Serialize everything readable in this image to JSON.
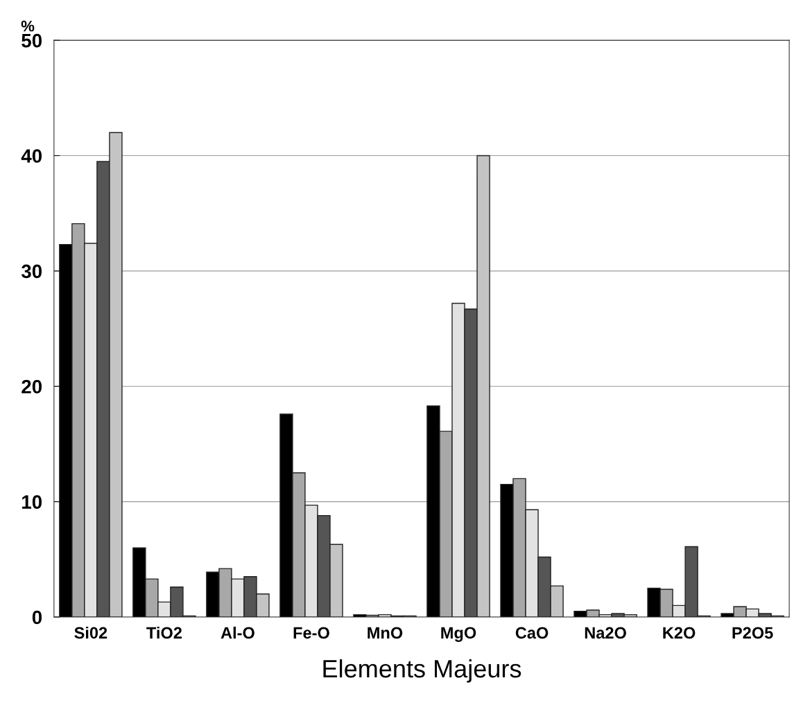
{
  "chart_data": {
    "type": "bar",
    "xlabel": "Elements Majeurs",
    "ylabel": "%",
    "categories": [
      "Si02",
      "TiO2",
      "Al-O",
      "Fe-O",
      "MnO",
      "MgO",
      "CaO",
      "Na2O",
      "K2O",
      "P2O5"
    ],
    "series": [
      {
        "color": "#000000",
        "values": [
          32.3,
          6.0,
          3.9,
          17.6,
          0.2,
          18.3,
          11.5,
          0.5,
          2.5,
          0.3
        ]
      },
      {
        "color": "#a8a8a8",
        "values": [
          34.1,
          3.3,
          4.2,
          12.5,
          0.15,
          16.1,
          12.0,
          0.6,
          2.4,
          0.9
        ]
      },
      {
        "color": "#e2e2e2",
        "values": [
          32.4,
          1.3,
          3.3,
          9.7,
          0.2,
          27.2,
          9.3,
          0.2,
          1.0,
          0.7
        ]
      },
      {
        "color": "#555555",
        "values": [
          39.5,
          2.6,
          3.5,
          8.8,
          0.1,
          26.7,
          5.2,
          0.3,
          6.1,
          0.3
        ]
      },
      {
        "color": "#c4c4c4",
        "values": [
          42.0,
          0.1,
          2.0,
          6.3,
          0.1,
          40.0,
          2.7,
          0.2,
          0.1,
          0.1
        ]
      }
    ],
    "ylim": [
      0,
      50
    ],
    "yticks": [
      0,
      10,
      20,
      30,
      40,
      50
    ],
    "grid": "y"
  }
}
